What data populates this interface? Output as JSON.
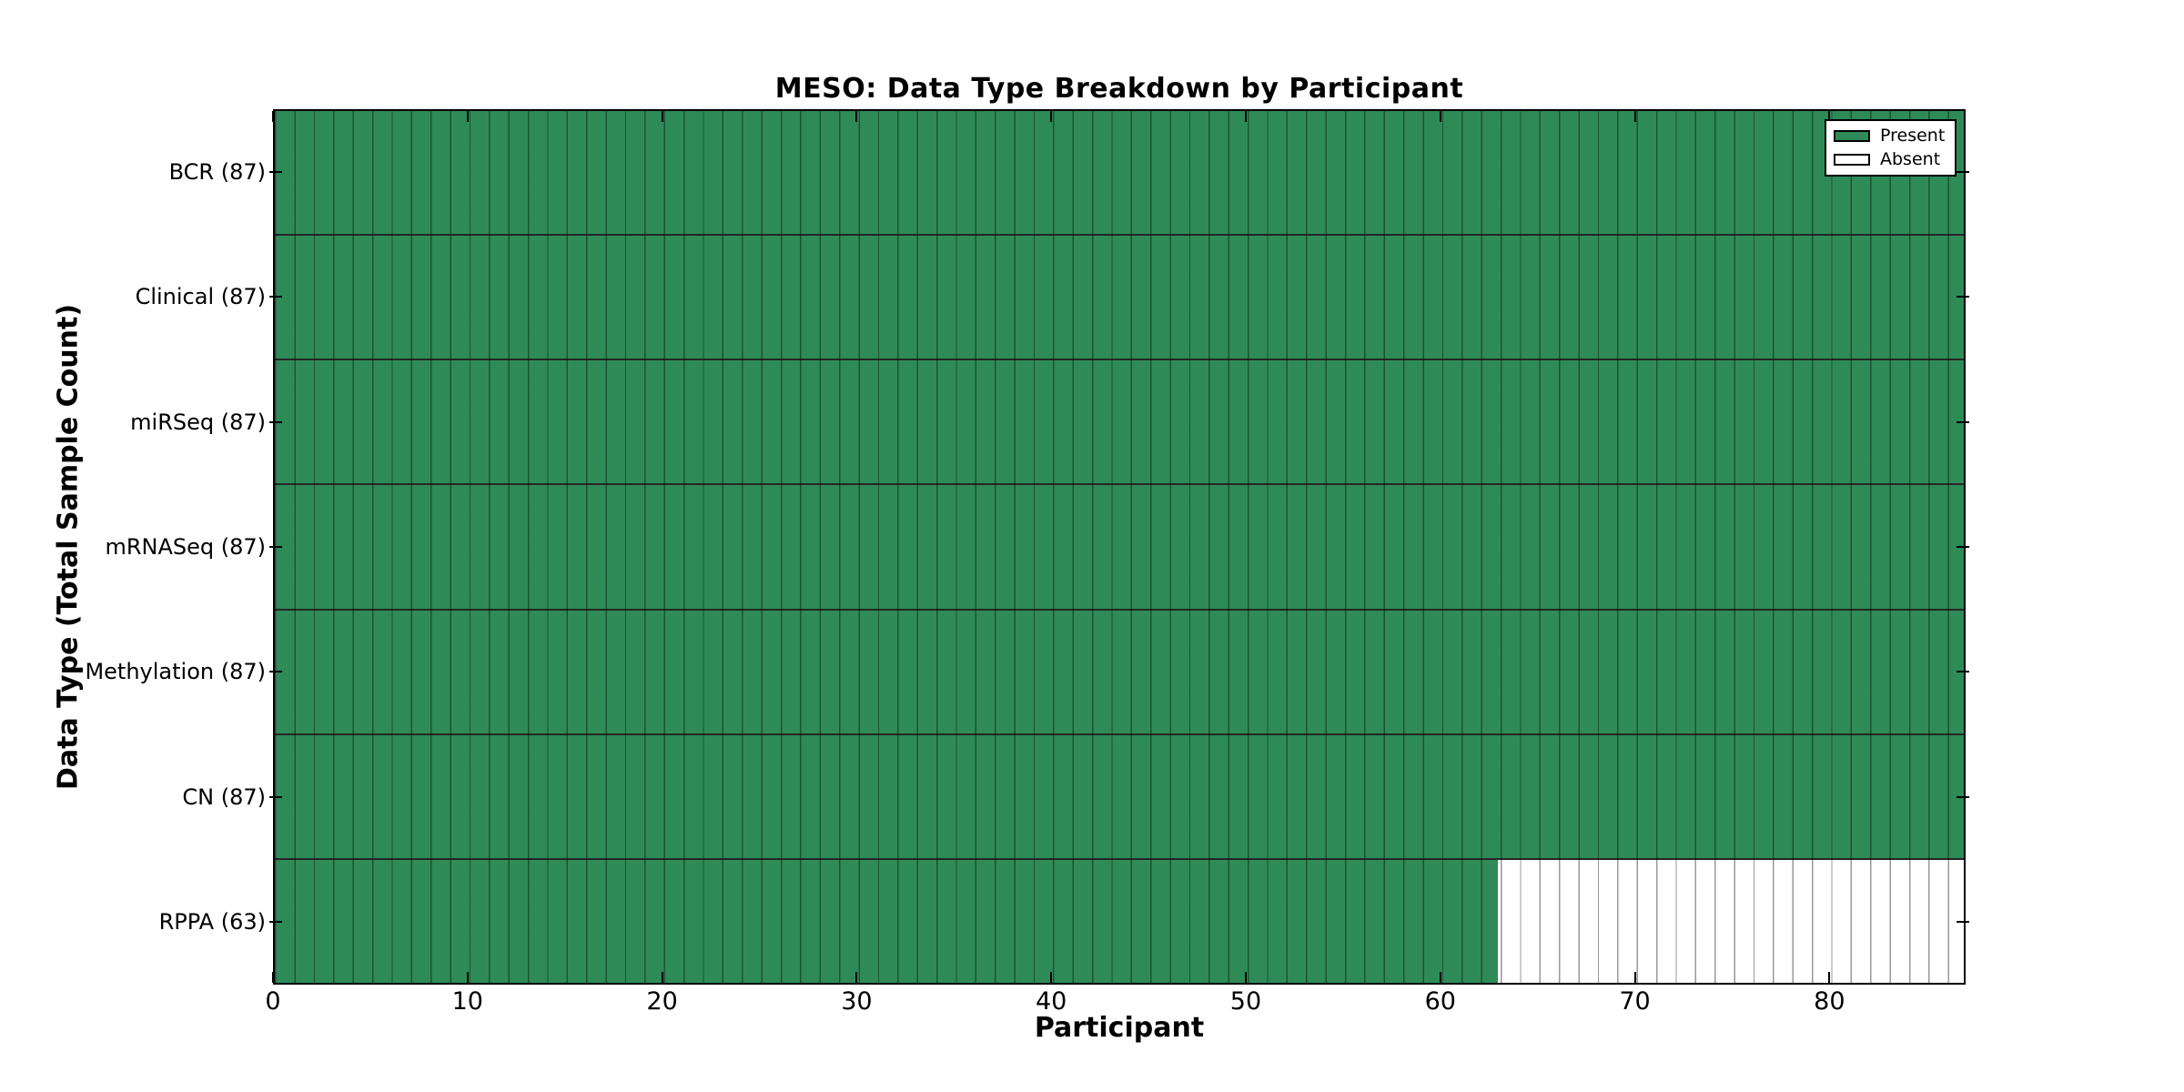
{
  "chart_data": {
    "type": "heatmap",
    "title": "MESO: Data Type Breakdown by Participant",
    "xlabel": "Participant",
    "ylabel": "Data Type (Total Sample Count)",
    "total_participants": 87,
    "x_ticks": [
      0,
      10,
      20,
      30,
      40,
      50,
      60,
      70,
      80
    ],
    "xlim": [
      0,
      87
    ],
    "grid": "per-participant cell edges",
    "legend_position": "upper right",
    "rows": [
      {
        "data_type": "BCR",
        "label": "BCR (87)",
        "total_sample_count": 87,
        "present_count": 87,
        "absent_count": 0
      },
      {
        "data_type": "Clinical",
        "label": "Clinical (87)",
        "total_sample_count": 87,
        "present_count": 87,
        "absent_count": 0
      },
      {
        "data_type": "miRSeq",
        "label": "miRSeq (87)",
        "total_sample_count": 87,
        "present_count": 87,
        "absent_count": 0
      },
      {
        "data_type": "mRNASeq",
        "label": "mRNASeq (87)",
        "total_sample_count": 87,
        "present_count": 87,
        "absent_count": 0
      },
      {
        "data_type": "Methylation",
        "label": "Methylation (87)",
        "total_sample_count": 87,
        "present_count": 87,
        "absent_count": 0
      },
      {
        "data_type": "CN",
        "label": "CN (87)",
        "total_sample_count": 87,
        "present_count": 87,
        "absent_count": 0
      },
      {
        "data_type": "RPPA",
        "label": "RPPA (63)",
        "total_sample_count": 63,
        "present_count": 63,
        "absent_count": 24
      }
    ],
    "legend": {
      "entries": [
        {
          "label": "Present",
          "color": "#2E8B57"
        },
        {
          "label": "Absent",
          "color": "#FFFFFF"
        }
      ]
    },
    "colors": {
      "present": "#2E8B57",
      "absent": "#FFFFFF",
      "cell_edge": "rgba(0,0,0,0.40)",
      "axis": "#000000"
    }
  }
}
